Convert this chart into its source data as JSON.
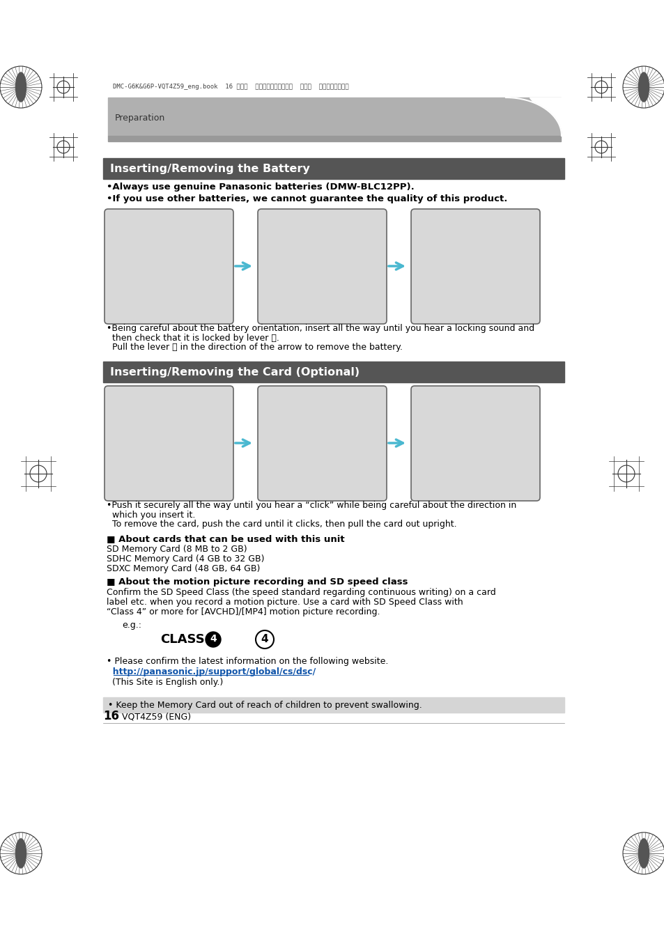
{
  "bg_color": "#ffffff",
  "header_bar_line": "DMC-G6K&G6P-VQT4Z59_eng.book  16 ページ  ２０１３年４月２４日  水曜日  午前１１時２２分",
  "header_text": "Preparation",
  "section1_title": "Inserting/Removing the Battery",
  "section2_title": "Inserting/Removing the Card (Optional)",
  "bullet1": "•Always use genuine Panasonic batteries (DMW-BLC12PP).",
  "bullet2": "•If you use other batteries, we cannot guarantee the quality of this product.",
  "battery_cap1": "•Being careful about the battery orientation, insert all the way until you hear a locking sound and",
  "battery_cap2": "  then check that it is locked by lever Ⓐ.",
  "battery_cap3": "  Pull the lever Ⓐ in the direction of the arrow to remove the battery.",
  "card_cap1": "•Push it securely all the way until you hear a “click” while being careful about the direction in",
  "card_cap2": "  which you insert it.",
  "card_cap3": "  To remove the card, push the card until it clicks, then pull the card out upright.",
  "about_cards_title": "■ About cards that can be used with this unit",
  "about_cards_1": "SD Memory Card (8 MB to 2 GB)",
  "about_cards_2": "SDHC Memory Card (4 GB to 32 GB)",
  "about_cards_3": "SDXC Memory Card (48 GB, 64 GB)",
  "about_motion_title": "■ About the motion picture recording and SD speed class",
  "about_motion_1": "Confirm the SD Speed Class (the speed standard regarding continuous writing) on a card",
  "about_motion_2": "label etc. when you record a motion picture. Use a card with SD Speed Class with",
  "about_motion_3": "“Class 4” or more for [AVCHD]/[MP4] motion picture recording.",
  "eg_label": "e.g.:",
  "website_line1": "• Please confirm the latest information on the following website.",
  "website_url": "  http://panasonic.jp/support/global/cs/dsc/",
  "website_note": "  (This Site is English only.)",
  "warning_text": "• Keep the Memory Card out of reach of children to prevent swallowing.",
  "page_number": "16",
  "page_suffix": " VQT4Z59 (ENG)",
  "arrow_color": "#4ab8d0",
  "section_color": "#555555",
  "header_gray": "#b0b0b0",
  "header_light": "#c8c8c8",
  "img_border": "#777777",
  "img_fill": "#d8d8d8",
  "warning_bg": "#d5d5d5"
}
